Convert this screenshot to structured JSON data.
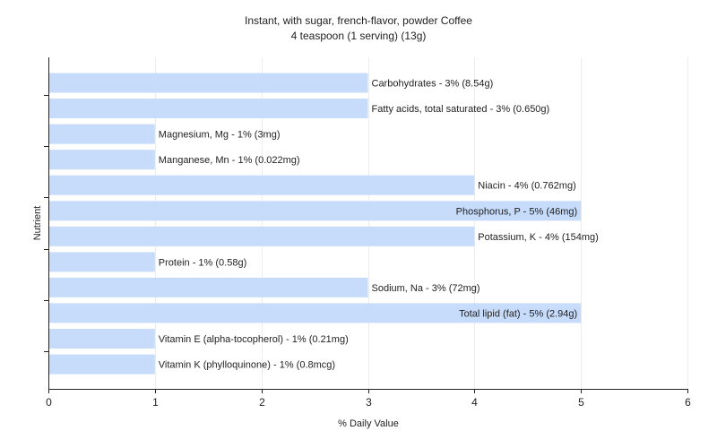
{
  "chart_data": {
    "type": "bar",
    "orientation": "horizontal",
    "title": "Instant, with sugar, french-flavor, powder Coffee",
    "subtitle": "4 teaspoon (1 serving) (13g)",
    "xlabel": "% Daily Value",
    "ylabel": "Nutrient",
    "xlim": [
      0,
      6
    ],
    "xticks": [
      0,
      1,
      2,
      3,
      4,
      5,
      6
    ],
    "grid": true,
    "bar_color": "#c6dcfa",
    "categories": [
      "Carbohydrates",
      "Fatty acids, total saturated",
      "Magnesium, Mg",
      "Manganese, Mn",
      "Niacin",
      "Phosphorus, P",
      "Potassium, K",
      "Protein",
      "Sodium, Na",
      "Total lipid (fat)",
      "Vitamin E (alpha-tocopherol)",
      "Vitamin K (phylloquinone)"
    ],
    "values": [
      3,
      3,
      1,
      1,
      4,
      5,
      4,
      1,
      3,
      5,
      1,
      1
    ],
    "labels": [
      "Carbohydrates - 3% (8.54g)",
      "Fatty acids, total saturated - 3% (0.650g)",
      "Magnesium, Mg - 1% (3mg)",
      "Manganese, Mn - 1% (0.022mg)",
      "Niacin - 4% (0.762mg)",
      "Phosphorus, P - 5% (46mg)",
      "Potassium, K - 4% (154mg)",
      "Protein - 1% (0.58g)",
      "Sodium, Na - 3% (72mg)",
      "Total lipid (fat) - 5% (2.94g)",
      "Vitamin E (alpha-tocopherol) - 1% (0.21mg)",
      "Vitamin K (phylloquinone) - 1% (0.8mcg)"
    ]
  }
}
